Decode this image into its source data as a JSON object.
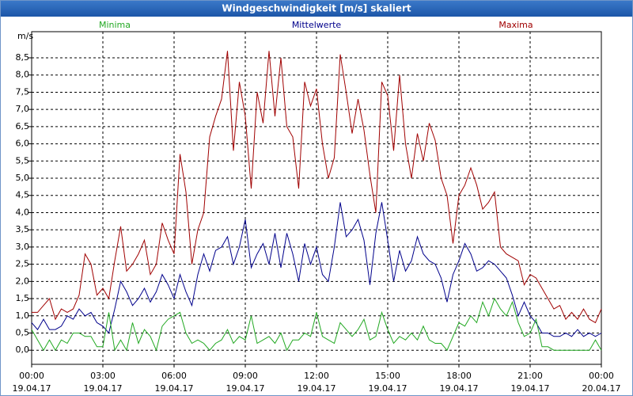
{
  "chart_data": {
    "type": "line",
    "title": "Windgeschwindigkeit [m/s] skaliert",
    "ylabel": "m/s",
    "x": [
      0,
      0.25,
      0.5,
      0.75,
      1,
      1.25,
      1.5,
      1.75,
      2,
      2.25,
      2.5,
      2.75,
      3,
      3.25,
      3.5,
      3.75,
      4,
      4.25,
      4.5,
      4.75,
      5,
      5.25,
      5.5,
      5.75,
      6,
      6.25,
      6.5,
      6.75,
      7,
      7.25,
      7.5,
      7.75,
      8,
      8.25,
      8.5,
      8.75,
      9,
      9.25,
      9.5,
      9.75,
      10,
      10.25,
      10.5,
      10.75,
      11,
      11.25,
      11.5,
      11.75,
      12,
      12.25,
      12.5,
      12.75,
      13,
      13.25,
      13.5,
      13.75,
      14,
      14.25,
      14.5,
      14.75,
      15,
      15.25,
      15.5,
      15.75,
      16,
      16.25,
      16.5,
      16.75,
      17,
      17.25,
      17.5,
      17.75,
      18,
      18.25,
      18.5,
      18.75,
      19,
      19.25,
      19.5,
      19.75,
      20,
      20.25,
      20.5,
      20.75,
      21,
      21.25,
      21.5,
      21.75,
      22,
      22.25,
      22.5,
      22.75,
      23,
      23.25,
      23.5,
      23.75,
      24
    ],
    "series": [
      {
        "name": "Minima",
        "color": "#22a822",
        "values": [
          0.6,
          0.3,
          0.0,
          0.3,
          0.0,
          0.3,
          0.2,
          0.5,
          0.5,
          0.4,
          0.4,
          0.1,
          0.1,
          1.1,
          0.0,
          0.3,
          0.0,
          0.8,
          0.2,
          0.6,
          0.4,
          0.0,
          0.7,
          0.9,
          1.0,
          1.1,
          0.5,
          0.2,
          0.3,
          0.2,
          0.0,
          0.2,
          0.3,
          0.6,
          0.2,
          0.4,
          0.3,
          1.0,
          0.2,
          0.3,
          0.4,
          0.2,
          0.5,
          0.0,
          0.3,
          0.3,
          0.5,
          0.4,
          1.1,
          0.4,
          0.3,
          0.2,
          0.8,
          0.6,
          0.4,
          0.6,
          0.9,
          0.3,
          0.4,
          1.1,
          0.6,
          0.2,
          0.4,
          0.3,
          0.5,
          0.3,
          0.7,
          0.3,
          0.2,
          0.2,
          0.0,
          0.4,
          0.8,
          0.7,
          1.0,
          0.8,
          1.4,
          1.0,
          1.5,
          1.2,
          1.0,
          1.4,
          0.8,
          0.4,
          0.5,
          0.9,
          0.1,
          0.1,
          0.0,
          0.0,
          0.0,
          0.0,
          0.0,
          0.0,
          0.0,
          0.3,
          0.0
        ]
      },
      {
        "name": "Mittelwerte",
        "color": "#00008b",
        "values": [
          0.8,
          0.6,
          0.9,
          0.6,
          0.6,
          0.7,
          1.0,
          0.9,
          1.2,
          1.0,
          1.1,
          0.8,
          0.7,
          0.5,
          1.2,
          2.0,
          1.7,
          1.3,
          1.5,
          1.8,
          1.4,
          1.7,
          2.2,
          1.9,
          1.5,
          2.2,
          1.7,
          1.3,
          2.2,
          2.8,
          2.3,
          2.9,
          3.0,
          3.3,
          2.5,
          3.0,
          3.8,
          2.4,
          2.8,
          3.1,
          2.5,
          3.4,
          2.4,
          3.4,
          2.8,
          2.0,
          3.1,
          2.5,
          3.0,
          2.2,
          2.0,
          3.0,
          4.3,
          3.3,
          3.5,
          3.8,
          3.2,
          1.9,
          3.4,
          4.3,
          3.2,
          2.0,
          2.9,
          2.3,
          2.6,
          3.3,
          2.8,
          2.6,
          2.5,
          2.1,
          1.4,
          2.2,
          2.6,
          3.1,
          2.8,
          2.3,
          2.4,
          2.6,
          2.5,
          2.3,
          2.1,
          1.6,
          1.0,
          1.4,
          1.0,
          0.8,
          0.5,
          0.5,
          0.4,
          0.4,
          0.5,
          0.4,
          0.6,
          0.4,
          0.5,
          0.4,
          0.5
        ]
      },
      {
        "name": "Maxima",
        "color": "#a00000",
        "values": [
          1.1,
          1.1,
          1.3,
          1.5,
          0.9,
          1.2,
          1.1,
          1.2,
          1.6,
          2.8,
          2.5,
          1.6,
          1.8,
          1.5,
          2.6,
          3.6,
          2.3,
          2.5,
          2.8,
          3.2,
          2.2,
          2.5,
          3.7,
          3.2,
          2.8,
          5.7,
          4.6,
          2.5,
          3.5,
          4.0,
          6.2,
          6.8,
          7.3,
          8.7,
          5.8,
          7.8,
          6.8,
          4.7,
          7.5,
          6.6,
          8.7,
          6.8,
          8.5,
          6.5,
          6.2,
          4.7,
          7.8,
          7.1,
          7.6,
          6.0,
          5.0,
          5.6,
          8.6,
          7.5,
          6.3,
          7.3,
          6.4,
          5.1,
          4.0,
          7.8,
          7.4,
          5.8,
          8.0,
          6.0,
          5.0,
          6.3,
          5.5,
          6.6,
          6.1,
          5.0,
          4.5,
          3.1,
          4.5,
          4.8,
          5.3,
          4.8,
          4.1,
          4.3,
          4.6,
          3.0,
          2.8,
          2.7,
          2.6,
          1.9,
          2.2,
          2.1,
          1.8,
          1.5,
          1.2,
          1.3,
          0.9,
          1.1,
          0.9,
          1.2,
          0.9,
          0.8,
          1.2
        ]
      }
    ],
    "xlim": [
      0,
      24
    ],
    "xticks": [
      {
        "value": 0,
        "label": "00:00",
        "date": "19.04.17"
      },
      {
        "value": 3,
        "label": "03:00",
        "date": "19.04.17"
      },
      {
        "value": 6,
        "label": "06:00",
        "date": "19.04.17"
      },
      {
        "value": 9,
        "label": "09:00",
        "date": "19.04.17"
      },
      {
        "value": 12,
        "label": "12:00",
        "date": "19.04.17"
      },
      {
        "value": 15,
        "label": "15:00",
        "date": "19.04.17"
      },
      {
        "value": 18,
        "label": "18:00",
        "date": "19.04.17"
      },
      {
        "value": 21,
        "label": "21:00",
        "date": "19.04.17"
      },
      {
        "value": 24,
        "label": "00:00",
        "date": "20.04.17"
      }
    ],
    "ylim": [
      -0.41,
      9.26
    ],
    "yticks": [
      {
        "value": 0,
        "label": "0,0"
      },
      {
        "value": 0.5,
        "label": "0,5"
      },
      {
        "value": 1,
        "label": "1,0"
      },
      {
        "value": 1.5,
        "label": "1,5"
      },
      {
        "value": 2,
        "label": "2,0"
      },
      {
        "value": 2.5,
        "label": "2,5"
      },
      {
        "value": 3,
        "label": "3,0"
      },
      {
        "value": 3.5,
        "label": "3,5"
      },
      {
        "value": 4,
        "label": "4,0"
      },
      {
        "value": 4.5,
        "label": "4,5"
      },
      {
        "value": 5,
        "label": "5,0"
      },
      {
        "value": 5.5,
        "label": "5,5"
      },
      {
        "value": 6,
        "label": "6,0"
      },
      {
        "value": 6.5,
        "label": "6,5"
      },
      {
        "value": 7,
        "label": "7,0"
      },
      {
        "value": 7.5,
        "label": "7,5"
      },
      {
        "value": 8,
        "label": "8,0"
      },
      {
        "value": 8.5,
        "label": "8,5"
      }
    ],
    "grid": true
  }
}
